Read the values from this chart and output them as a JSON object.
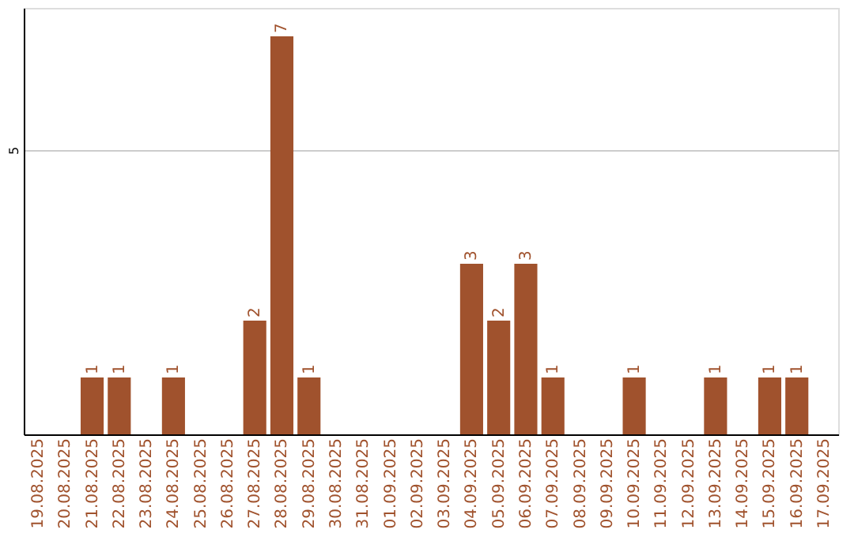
{
  "chart_data": {
    "type": "bar",
    "categories": [
      "19.08.2025",
      "20.08.2025",
      "21.08.2025",
      "22.08.2025",
      "23.08.2025",
      "24.08.2025",
      "25.08.2025",
      "26.08.2025",
      "27.08.2025",
      "28.08.2025",
      "29.08.2025",
      "30.08.2025",
      "31.08.2025",
      "01.09.2025",
      "02.09.2025",
      "03.09.2025",
      "04.09.2025",
      "05.09.2025",
      "06.09.2025",
      "07.09.2025",
      "08.09.2025",
      "09.09.2025",
      "10.09.2025",
      "11.09.2025",
      "12.09.2025",
      "13.09.2025",
      "14.09.2025",
      "15.09.2025",
      "16.09.2025",
      "17.09.2025"
    ],
    "values": [
      0,
      0,
      1,
      1,
      0,
      1,
      0,
      0,
      2,
      7,
      1,
      0,
      0,
      0,
      0,
      0,
      3,
      2,
      3,
      1,
      0,
      0,
      1,
      0,
      0,
      1,
      0,
      1,
      1,
      0
    ],
    "value_labels": [
      null,
      null,
      "1",
      "1",
      null,
      "1",
      null,
      null,
      "2",
      "7",
      "1",
      null,
      null,
      null,
      null,
      null,
      "3",
      "2",
      "3",
      "1",
      null,
      null,
      "1",
      null,
      null,
      "1",
      null,
      "1",
      "1",
      null
    ],
    "color": "#a0522d",
    "ylim": [
      0,
      7.5
    ],
    "yticks": [
      0,
      5
    ],
    "grid": "y"
  }
}
